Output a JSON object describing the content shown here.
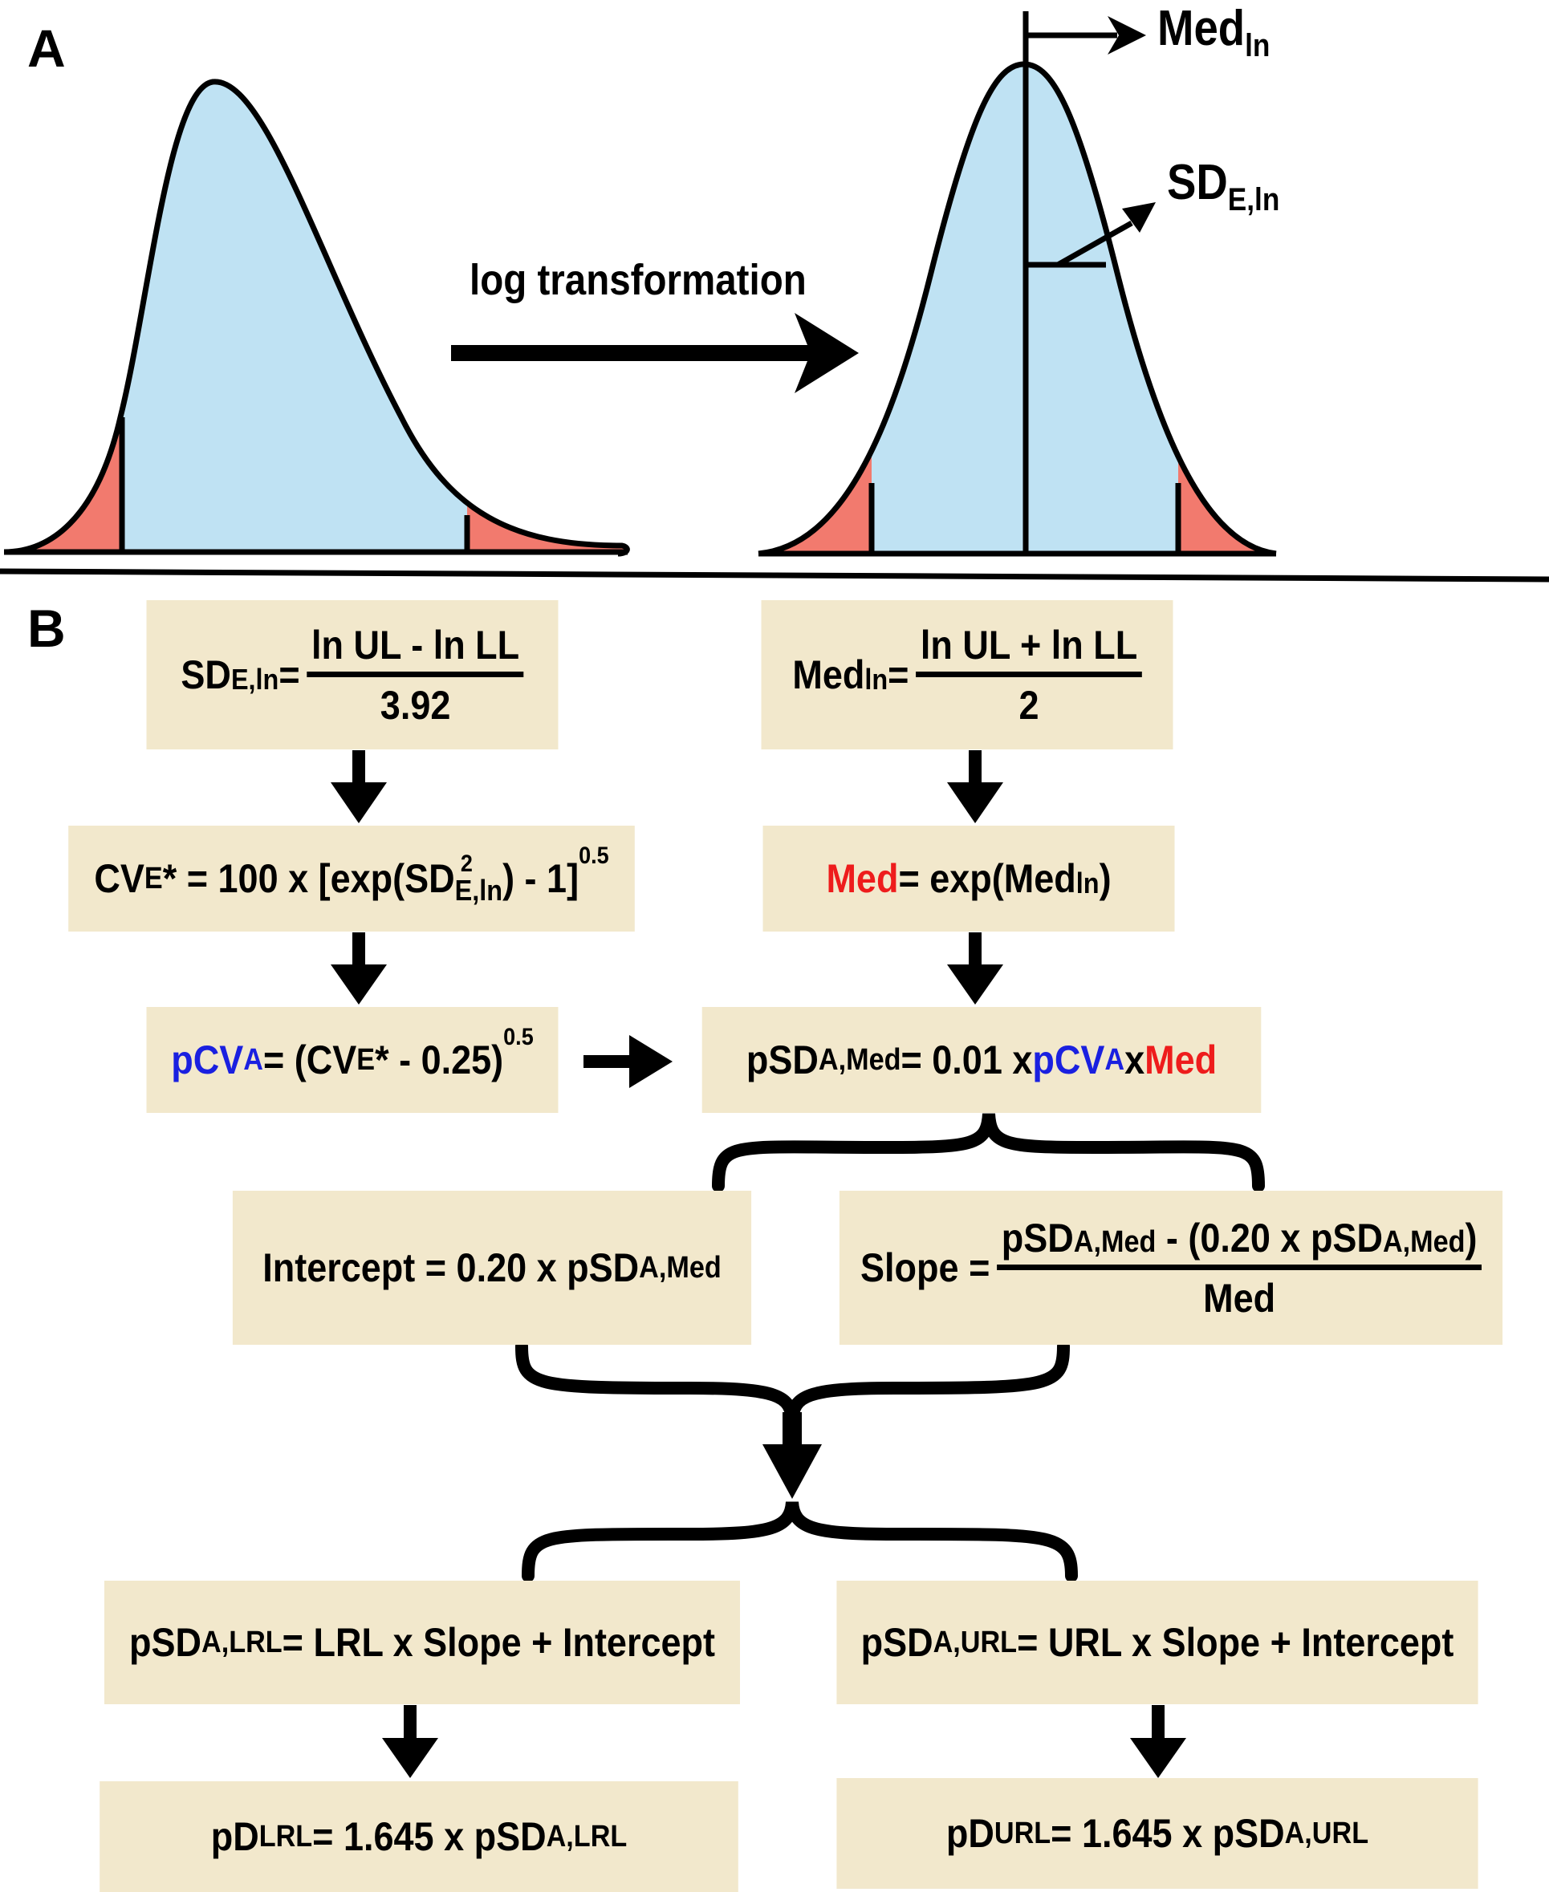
{
  "panels": {
    "a": "A",
    "b": "B"
  },
  "panel_a": {
    "arrow_label": "log transformation",
    "med_label": "Med",
    "med_sub": "ln",
    "sd_label": "SD",
    "sd_sub": "E,ln"
  },
  "boxes": {
    "sde": {
      "lhs": "SD",
      "lhs_sub": "E,ln",
      "eq": " =",
      "num": "ln UL - ln LL",
      "den": "3.92"
    },
    "medln": {
      "lhs": "Med",
      "lhs_sub": "ln",
      "eq": " =",
      "num": "ln UL + ln LL",
      "den": "2"
    },
    "cve": {
      "p1": "CV",
      "p1_sub": "E",
      "p2": "* = 100 x [exp(SD",
      "sq": "2",
      "p2_sub": "E,ln",
      "p3": ") - 1]",
      "exp": "0.5"
    },
    "med": {
      "med": "Med",
      "rest": " = exp(Med",
      "sub": "ln",
      "close": ")"
    },
    "pcva": {
      "p1": "pCV",
      "p1_sub": "A",
      "p2": " = (CV",
      "p2_sub": "E",
      "p3": "* - 0.25)",
      "exp": "0.5"
    },
    "psdmed": {
      "p1": "pSD",
      "p1_sub": "A,Med",
      "p2": " = 0.01 x ",
      "pcv": "pCV",
      "pcv_sub": "A",
      "x": " x ",
      "med": "Med"
    },
    "intercept": {
      "p1": "Intercept = 0.20 x pSD",
      "sub": "A,Med"
    },
    "slope": {
      "lhs": "Slope =",
      "num1": "pSD",
      "num1_sub": "A,Med",
      "num2": " - (0.20 x pSD",
      "num2_sub": "A,Med",
      "num3": ")",
      "den": "Med"
    },
    "psdlrl": {
      "p1": "pSD",
      "sub": "A,LRL",
      "p2": " = LRL x Slope + Intercept"
    },
    "psdurl": {
      "p1": "pSD",
      "sub": "A,URL",
      "p2": " = URL x Slope + Intercept"
    },
    "pdlrl": {
      "p1": "pD",
      "sub": "LRL",
      "p2": " = 1.645 x pSD",
      "sub2": "A,LRL"
    },
    "pdurl": {
      "p1": "pD",
      "sub": "URL",
      "p2": " = 1.645 x pSD",
      "sub2": "A,URL"
    }
  },
  "colors": {
    "curve_fill": "#bfe2f3",
    "tail_fill": "#f27a6e",
    "box_fill": "#f2e8cc",
    "blue": "#1a20e0",
    "red": "#ee1c1c"
  }
}
